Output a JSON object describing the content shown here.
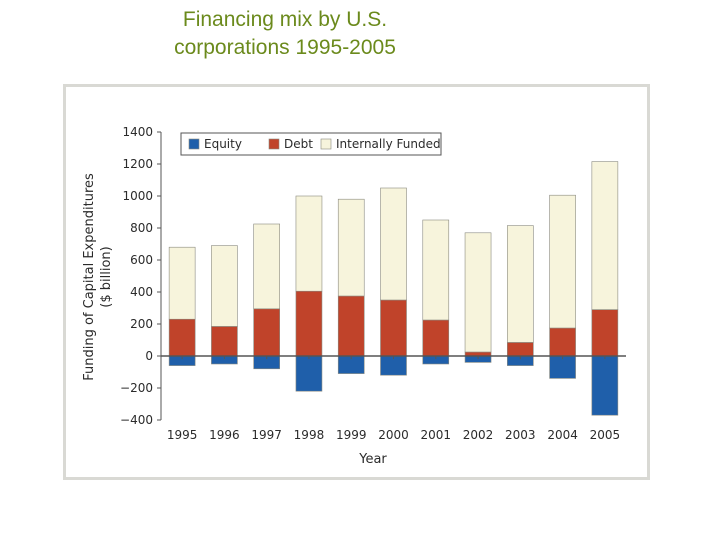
{
  "slide": {
    "title_line1": "Financing mix by U.S.",
    "title_line2": "corporations 1995-2005"
  },
  "chart_data": {
    "type": "bar",
    "stacked": true,
    "title": "Financing mix by U.S. corporations 1995-2005",
    "xlabel": "Year",
    "ylabel_line1": "Funding of Capital Expenditures",
    "ylabel_line2": "($ billion)",
    "ylim": [
      -400,
      1400
    ],
    "yticks": [
      1400,
      1200,
      1000,
      800,
      600,
      400,
      200,
      0,
      -200,
      -400
    ],
    "ytick_labels": [
      "1400",
      "1200",
      "1000",
      "800",
      "600",
      "400",
      "200",
      "0",
      "−200",
      "−400"
    ],
    "categories": [
      "1995",
      "1996",
      "1997",
      "1998",
      "1999",
      "2000",
      "2001",
      "2002",
      "2003",
      "2004",
      "2005"
    ],
    "series": [
      {
        "name": "Equity",
        "color": "#1f5faa",
        "values": [
          -60,
          -50,
          -80,
          -220,
          -110,
          -120,
          -50,
          -40,
          -60,
          -140,
          -370
        ]
      },
      {
        "name": "Debt",
        "color": "#c0432a",
        "values": [
          230,
          185,
          295,
          405,
          375,
          350,
          225,
          25,
          85,
          175,
          290
        ]
      },
      {
        "name": "Internally Funded",
        "color": "#f7f4dc",
        "values": [
          450,
          505,
          530,
          595,
          605,
          700,
          625,
          745,
          730,
          830,
          925
        ]
      }
    ],
    "legend": "top"
  }
}
